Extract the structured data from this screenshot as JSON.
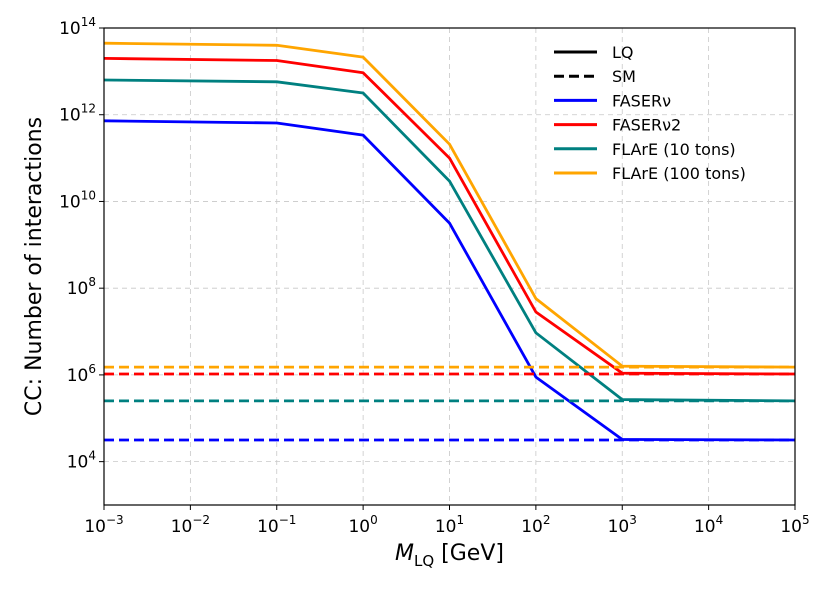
{
  "chart_data": {
    "type": "line",
    "xscale": "log",
    "yscale": "log",
    "xlabel_main": "M",
    "xlabel_sub": "LQ",
    "xlabel_unit": " [GeV]",
    "ylabel": "CC: Number of interactions",
    "xlim_exp": [
      -3,
      5
    ],
    "ylim_exp": [
      3,
      14
    ],
    "x_ticks": [
      {
        "base": "10",
        "exp": "−3",
        "value": -3
      },
      {
        "base": "10",
        "exp": "−2",
        "value": -2
      },
      {
        "base": "10",
        "exp": "−1",
        "value": -1
      },
      {
        "base": "10",
        "exp": "0",
        "value": 0
      },
      {
        "base": "10",
        "exp": "1",
        "value": 1
      },
      {
        "base": "10",
        "exp": "2",
        "value": 2
      },
      {
        "base": "10",
        "exp": "3",
        "value": 3
      },
      {
        "base": "10",
        "exp": "4",
        "value": 4
      },
      {
        "base": "10",
        "exp": "5",
        "value": 5
      }
    ],
    "y_ticks": [
      {
        "base": "10",
        "exp": "4",
        "value": 4
      },
      {
        "base": "10",
        "exp": "6",
        "value": 6
      },
      {
        "base": "10",
        "exp": "8",
        "value": 8
      },
      {
        "base": "10",
        "exp": "10",
        "value": 10
      },
      {
        "base": "10",
        "exp": "12",
        "value": 12
      },
      {
        "base": "10",
        "exp": "14",
        "value": 14
      }
    ],
    "grid": true,
    "legend_position": "top-right",
    "legend": [
      {
        "label": "LQ",
        "color": "#000000",
        "dash": "solid"
      },
      {
        "label": "SM",
        "color": "#000000",
        "dash": "dashed"
      },
      {
        "label": "FASERν",
        "color": "#0000ff",
        "dash": "solid"
      },
      {
        "label": "FASERν2",
        "color": "#ff0000",
        "dash": "solid"
      },
      {
        "label": "FLArE (10 tons)",
        "color": "#008080",
        "dash": "solid"
      },
      {
        "label": "FLArE (100 tons)",
        "color": "#ffa500",
        "dash": "solid"
      }
    ],
    "log10_x": [
      -3,
      -1,
      0,
      1,
      2,
      3,
      5
    ],
    "series": [
      {
        "name": "FASERν (LQ)",
        "color": "#0000ff",
        "dash": "solid",
        "log10_y": [
          11.86,
          11.81,
          11.53,
          9.5,
          5.95,
          4.51,
          4.5
        ]
      },
      {
        "name": "FASERν2 (LQ)",
        "color": "#ff0000",
        "dash": "solid",
        "log10_y": [
          13.3,
          13.25,
          12.97,
          11.0,
          7.45,
          6.04,
          6.02
        ]
      },
      {
        "name": "FLArE (10 tons) (LQ)",
        "color": "#008080",
        "dash": "solid",
        "log10_y": [
          12.8,
          12.76,
          12.5,
          10.47,
          6.97,
          5.43,
          5.4
        ]
      },
      {
        "name": "FLArE (100 tons) (LQ)",
        "color": "#ffa500",
        "dash": "solid",
        "log10_y": [
          13.65,
          13.6,
          13.33,
          11.32,
          7.76,
          6.2,
          6.18
        ]
      },
      {
        "name": "FASERν (SM)",
        "color": "#0000ff",
        "dash": "dashed",
        "log10_y": [
          4.5,
          4.5,
          4.5,
          4.5,
          4.5,
          4.5,
          4.5
        ]
      },
      {
        "name": "FASERν2 (SM)",
        "color": "#ff0000",
        "dash": "dashed",
        "log10_y": [
          6.02,
          6.02,
          6.02,
          6.02,
          6.02,
          6.02,
          6.02
        ]
      },
      {
        "name": "FLArE (10 tons) (SM)",
        "color": "#008080",
        "dash": "dashed",
        "log10_y": [
          5.4,
          5.4,
          5.4,
          5.4,
          5.4,
          5.4,
          5.4
        ]
      },
      {
        "name": "FLArE (100 tons) (SM)",
        "color": "#ffa500",
        "dash": "dashed",
        "log10_y": [
          6.18,
          6.18,
          6.18,
          6.18,
          6.18,
          6.18,
          6.18
        ]
      }
    ]
  }
}
